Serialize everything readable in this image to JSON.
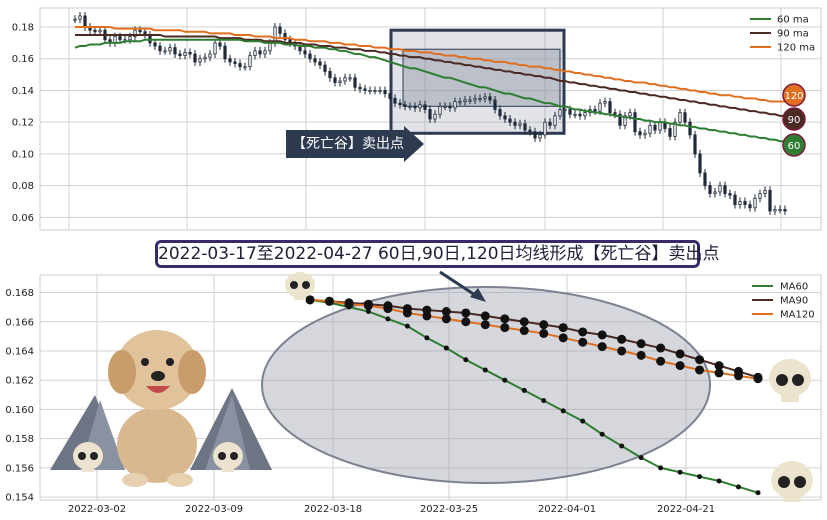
{
  "banner_text": "2022-03-17至2022-04-27 60日,90日,120日均线形成【死亡谷】卖出点",
  "arrow_label": "【死亡谷】卖出点",
  "colors": {
    "ma60": "#2e7d32",
    "ma90": "#4a2a22",
    "ma120": "#e07020",
    "up": "#ffffff",
    "down": "#1e2a3a",
    "highlight_box": "#2d3a50",
    "ellipse": "#9aa0ae"
  },
  "chart_data": [
    {
      "type": "candlestick",
      "title": "",
      "ylim": [
        0.052,
        0.192
      ],
      "yticks": [
        0.06,
        0.08,
        0.1,
        0.12,
        0.14,
        0.16,
        0.18
      ],
      "ytick_labels": [
        "0.06",
        "0.08",
        "0.10",
        "0.12",
        "0.14",
        "0.16",
        "0.18"
      ],
      "grid": true,
      "legend_position": "top-right",
      "legend": [
        "60 ma",
        "90 ma",
        "120 ma"
      ],
      "end_badges": [
        "120",
        "90",
        "60"
      ],
      "close": [
        0.185,
        0.187,
        0.18,
        0.178,
        0.177,
        0.178,
        0.172,
        0.17,
        0.174,
        0.172,
        0.172,
        0.174,
        0.178,
        0.177,
        0.175,
        0.17,
        0.168,
        0.165,
        0.165,
        0.167,
        0.163,
        0.162,
        0.164,
        0.163,
        0.158,
        0.16,
        0.161,
        0.163,
        0.17,
        0.168,
        0.16,
        0.158,
        0.157,
        0.155,
        0.155,
        0.162,
        0.165,
        0.163,
        0.165,
        0.17,
        0.18,
        0.176,
        0.172,
        0.17,
        0.168,
        0.165,
        0.163,
        0.16,
        0.158,
        0.156,
        0.152,
        0.148,
        0.145,
        0.146,
        0.148,
        0.148,
        0.142,
        0.141,
        0.14,
        0.14,
        0.14,
        0.14,
        0.138,
        0.135,
        0.132,
        0.131,
        0.13,
        0.13,
        0.129,
        0.131,
        0.128,
        0.122,
        0.125,
        0.13,
        0.13,
        0.129,
        0.133,
        0.133,
        0.134,
        0.134,
        0.135,
        0.135,
        0.136,
        0.134,
        0.128,
        0.124,
        0.122,
        0.12,
        0.118,
        0.119,
        0.115,
        0.114,
        0.11,
        0.112,
        0.12,
        0.118,
        0.124,
        0.128,
        0.128,
        0.125,
        0.125,
        0.124,
        0.126,
        0.128,
        0.127,
        0.132,
        0.133,
        0.126,
        0.125,
        0.118,
        0.124,
        0.126,
        0.114,
        0.112,
        0.113,
        0.118,
        0.115,
        0.12,
        0.116,
        0.111,
        0.12,
        0.126,
        0.12,
        0.112,
        0.1,
        0.088,
        0.08,
        0.075,
        0.076,
        0.08,
        0.075,
        0.074,
        0.068,
        0.07,
        0.068,
        0.066,
        0.072,
        0.075,
        0.077,
        0.064,
        0.065,
        0.065,
        0.064
      ],
      "ma60": [
        0.167,
        0.168,
        0.168,
        0.169,
        0.169,
        0.169,
        0.17,
        0.17,
        0.17,
        0.17,
        0.171,
        0.171,
        0.171,
        0.171,
        0.172,
        0.172,
        0.172,
        0.172,
        0.172,
        0.172,
        0.172,
        0.172,
        0.172,
        0.172,
        0.172,
        0.172,
        0.172,
        0.172,
        0.172,
        0.172,
        0.172,
        0.172,
        0.172,
        0.172,
        0.171,
        0.171,
        0.171,
        0.171,
        0.17,
        0.17,
        0.17,
        0.17,
        0.169,
        0.169,
        0.169,
        0.168,
        0.168,
        0.168,
        0.167,
        0.167,
        0.167,
        0.166,
        0.166,
        0.165,
        0.165,
        0.164,
        0.163,
        0.163,
        0.162,
        0.161,
        0.161,
        0.16,
        0.159,
        0.158,
        0.157,
        0.156,
        0.155,
        0.154,
        0.154,
        0.153,
        0.152,
        0.151,
        0.15,
        0.149,
        0.148,
        0.148,
        0.147,
        0.146,
        0.145,
        0.144,
        0.143,
        0.142,
        0.142,
        0.141,
        0.14,
        0.139,
        0.138,
        0.138,
        0.137,
        0.136,
        0.135,
        0.135,
        0.134,
        0.133,
        0.132,
        0.132,
        0.131,
        0.13,
        0.13,
        0.129,
        0.128,
        0.128,
        0.127,
        0.127,
        0.126,
        0.126,
        0.125,
        0.125,
        0.124,
        0.124,
        0.123,
        0.123,
        0.122,
        0.122,
        0.121,
        0.121,
        0.12,
        0.12,
        0.12,
        0.119,
        0.119,
        0.118,
        0.118,
        0.117,
        0.117,
        0.116,
        0.116,
        0.115,
        0.115,
        0.114,
        0.114,
        0.113,
        0.113,
        0.112,
        0.112,
        0.111,
        0.111,
        0.11,
        0.11,
        0.109,
        0.109,
        0.108,
        0.108
      ],
      "ma90": [
        0.175,
        0.175,
        0.175,
        0.175,
        0.175,
        0.175,
        0.175,
        0.175,
        0.175,
        0.175,
        0.175,
        0.175,
        0.175,
        0.175,
        0.175,
        0.175,
        0.175,
        0.175,
        0.174,
        0.174,
        0.174,
        0.174,
        0.174,
        0.174,
        0.174,
        0.174,
        0.174,
        0.174,
        0.174,
        0.173,
        0.173,
        0.173,
        0.173,
        0.173,
        0.172,
        0.172,
        0.172,
        0.172,
        0.171,
        0.171,
        0.171,
        0.171,
        0.17,
        0.17,
        0.17,
        0.17,
        0.169,
        0.169,
        0.169,
        0.168,
        0.168,
        0.168,
        0.167,
        0.167,
        0.167,
        0.166,
        0.166,
        0.166,
        0.165,
        0.165,
        0.165,
        0.164,
        0.164,
        0.163,
        0.163,
        0.162,
        0.162,
        0.161,
        0.161,
        0.161,
        0.16,
        0.16,
        0.159,
        0.159,
        0.158,
        0.158,
        0.157,
        0.157,
        0.156,
        0.156,
        0.155,
        0.155,
        0.154,
        0.154,
        0.153,
        0.153,
        0.152,
        0.152,
        0.151,
        0.151,
        0.15,
        0.15,
        0.149,
        0.149,
        0.148,
        0.148,
        0.147,
        0.146,
        0.146,
        0.145,
        0.145,
        0.144,
        0.144,
        0.143,
        0.143,
        0.142,
        0.142,
        0.141,
        0.141,
        0.14,
        0.14,
        0.139,
        0.139,
        0.138,
        0.138,
        0.137,
        0.137,
        0.136,
        0.136,
        0.135,
        0.135,
        0.134,
        0.134,
        0.133,
        0.133,
        0.132,
        0.132,
        0.131,
        0.131,
        0.13,
        0.13,
        0.129,
        0.129,
        0.128,
        0.128,
        0.127,
        0.127,
        0.126,
        0.126,
        0.125,
        0.125,
        0.124,
        0.124
      ],
      "ma120": [
        0.18,
        0.18,
        0.18,
        0.18,
        0.18,
        0.18,
        0.18,
        0.18,
        0.179,
        0.179,
        0.179,
        0.179,
        0.179,
        0.179,
        0.179,
        0.179,
        0.178,
        0.178,
        0.178,
        0.178,
        0.178,
        0.178,
        0.177,
        0.177,
        0.177,
        0.177,
        0.177,
        0.176,
        0.176,
        0.176,
        0.176,
        0.176,
        0.175,
        0.175,
        0.175,
        0.175,
        0.174,
        0.174,
        0.174,
        0.174,
        0.173,
        0.173,
        0.173,
        0.173,
        0.172,
        0.172,
        0.172,
        0.171,
        0.171,
        0.171,
        0.171,
        0.17,
        0.17,
        0.17,
        0.169,
        0.169,
        0.169,
        0.168,
        0.168,
        0.168,
        0.167,
        0.167,
        0.167,
        0.166,
        0.166,
        0.166,
        0.165,
        0.165,
        0.165,
        0.164,
        0.164,
        0.164,
        0.163,
        0.163,
        0.162,
        0.162,
        0.162,
        0.161,
        0.161,
        0.16,
        0.16,
        0.16,
        0.159,
        0.159,
        0.158,
        0.158,
        0.158,
        0.157,
        0.157,
        0.156,
        0.156,
        0.155,
        0.155,
        0.155,
        0.154,
        0.154,
        0.153,
        0.153,
        0.152,
        0.152,
        0.151,
        0.151,
        0.15,
        0.15,
        0.149,
        0.149,
        0.148,
        0.148,
        0.147,
        0.147,
        0.146,
        0.146,
        0.145,
        0.145,
        0.145,
        0.144,
        0.144,
        0.143,
        0.143,
        0.142,
        0.142,
        0.141,
        0.141,
        0.14,
        0.14,
        0.139,
        0.139,
        0.138,
        0.138,
        0.137,
        0.137,
        0.137,
        0.136,
        0.136,
        0.135,
        0.135,
        0.135,
        0.134,
        0.134,
        0.133,
        0.133,
        0.133,
        0.133
      ],
      "highlight_range": [
        0.113,
        0.178
      ]
    },
    {
      "type": "line",
      "title": "",
      "xlabel": "",
      "ylabel": "",
      "ylim": [
        0.1538,
        0.1692
      ],
      "yticks": [
        0.154,
        0.156,
        0.158,
        0.16,
        0.162,
        0.164,
        0.166,
        0.168
      ],
      "ytick_labels": [
        "0.154",
        "0.156",
        "0.158",
        "0.160",
        "0.162",
        "0.164",
        "0.166",
        "0.168"
      ],
      "xticks": [
        "2022-03-02",
        "2022-03-09",
        "2022-03-18",
        "2022-03-25",
        "2022-04-01",
        "2022-04-21"
      ],
      "grid": true,
      "legend_position": "top-right",
      "series": [
        {
          "name": "MA60",
          "values": [
            0.1675,
            0.1673,
            0.167,
            0.1667,
            0.1662,
            0.1657,
            0.1649,
            0.1642,
            0.1634,
            0.1627,
            0.162,
            0.1613,
            0.1606,
            0.1599,
            0.1592,
            0.1583,
            0.1575,
            0.1567,
            0.156,
            0.1557,
            0.1554,
            0.1551,
            0.1547,
            0.1543
          ]
        },
        {
          "name": "MA90",
          "values": [
            0.1675,
            0.1674,
            0.1673,
            0.1672,
            0.1671,
            0.1669,
            0.1668,
            0.1667,
            0.1666,
            0.1664,
            0.1662,
            0.166,
            0.1658,
            0.1656,
            0.1653,
            0.1651,
            0.1648,
            0.1645,
            0.1642,
            0.1638,
            0.1634,
            0.163,
            0.1626,
            0.1622
          ]
        },
        {
          "name": "MA120",
          "values": [
            0.1675,
            0.1674,
            0.1672,
            0.1671,
            0.1669,
            0.1666,
            0.1664,
            0.1662,
            0.166,
            0.1658,
            0.1656,
            0.1654,
            0.1652,
            0.1649,
            0.1646,
            0.1643,
            0.164,
            0.1637,
            0.1633,
            0.163,
            0.1627,
            0.1625,
            0.1623,
            0.1621
          ]
        }
      ]
    }
  ]
}
